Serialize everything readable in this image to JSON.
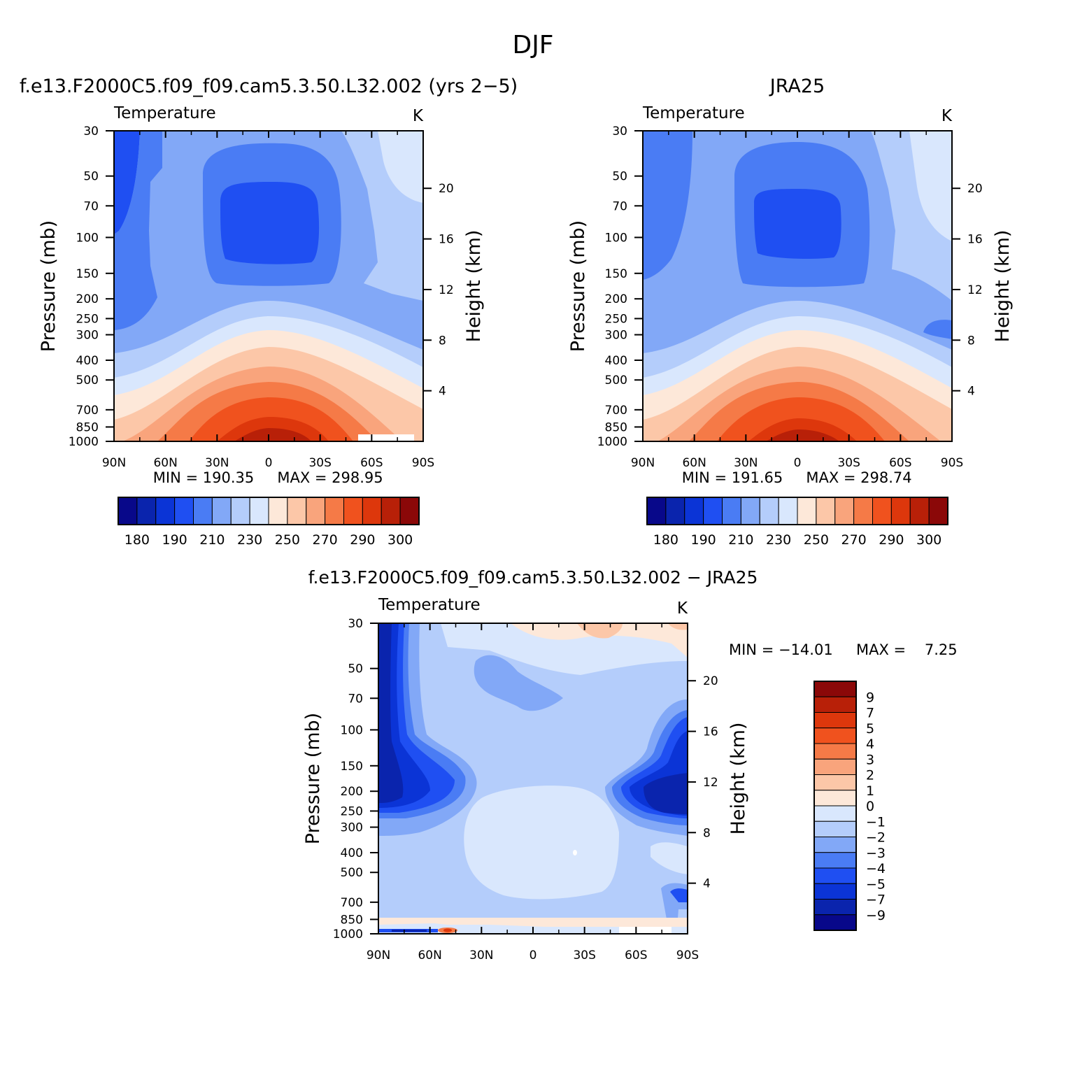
{
  "figure": {
    "title": "DJF"
  },
  "chart_data": [
    {
      "type": "heatmap",
      "panel_title": "f.e13.F2000C5.f09_f09.cam5.3.50.L32.002 (yrs 2−5)",
      "left_label": "Temperature",
      "units": "K",
      "ylabel": "Pressure (mb)",
      "ylabel_right": "Height (km)",
      "x_ticks": [
        "90N",
        "60N",
        "30N",
        "0",
        "30S",
        "60S",
        "90S"
      ],
      "y_ticks": [
        30,
        50,
        70,
        100,
        150,
        200,
        250,
        300,
        400,
        500,
        700,
        850,
        1000
      ],
      "y_right_ticks": [
        20,
        16,
        12,
        8,
        4
      ],
      "xlim": [
        90,
        -90
      ],
      "ylim": [
        1000,
        30
      ],
      "y_scale": "log",
      "min_text": "MIN = 190.35",
      "max_text": "MAX = 298.95",
      "colorbar_labels": [
        180,
        190,
        210,
        230,
        250,
        270,
        290,
        300
      ],
      "colorbar_orientation": "horizontal"
    },
    {
      "type": "heatmap",
      "panel_title": "JRA25",
      "left_label": "Temperature",
      "units": "K",
      "ylabel": "Pressure (mb)",
      "ylabel_right": "Height (km)",
      "x_ticks": [
        "90N",
        "60N",
        "30N",
        "0",
        "30S",
        "60S",
        "90S"
      ],
      "y_ticks": [
        30,
        50,
        70,
        100,
        150,
        200,
        250,
        300,
        400,
        500,
        700,
        850,
        1000
      ],
      "y_right_ticks": [
        20,
        16,
        12,
        8,
        4
      ],
      "xlim": [
        90,
        -90
      ],
      "ylim": [
        1000,
        30
      ],
      "y_scale": "log",
      "min_text": "MIN = 191.65",
      "max_text": "MAX = 298.74",
      "colorbar_labels": [
        180,
        190,
        210,
        230,
        250,
        270,
        290,
        300
      ],
      "colorbar_orientation": "horizontal"
    },
    {
      "type": "heatmap",
      "panel_title": "f.e13.F2000C5.f09_f09.cam5.3.50.L32.002 − JRA25",
      "left_label": "Temperature",
      "units": "K",
      "ylabel": "Pressure (mb)",
      "ylabel_right": "Height (km)",
      "x_ticks": [
        "90N",
        "60N",
        "30N",
        "0",
        "30S",
        "60S",
        "90S"
      ],
      "y_ticks": [
        30,
        50,
        70,
        100,
        150,
        200,
        250,
        300,
        400,
        500,
        700,
        850,
        1000
      ],
      "y_right_ticks": [
        20,
        16,
        12,
        8,
        4
      ],
      "xlim": [
        90,
        -90
      ],
      "ylim": [
        1000,
        30
      ],
      "y_scale": "log",
      "min_text": "MIN = −14.01",
      "max_text": "MAX =    7.25",
      "colorbar_labels": [
        "9",
        "7",
        "5",
        "4",
        "3",
        "2",
        "1",
        "0",
        "−1",
        "−2",
        "−3",
        "−4",
        "−5",
        "−7",
        "−9"
      ],
      "colorbar_orientation": "vertical"
    }
  ],
  "colors": {
    "levels": [
      "#08088a",
      "#0a24ad",
      "#0b34d6",
      "#1f4ff2",
      "#4a7cf4",
      "#82a8f7",
      "#b4cdfb",
      "#d9e7fd",
      "#fde8d9",
      "#fcc7a8",
      "#f9a47c",
      "#f57a47",
      "#f0521e",
      "#dd370c",
      "#b82008",
      "#8b0808"
    ]
  }
}
